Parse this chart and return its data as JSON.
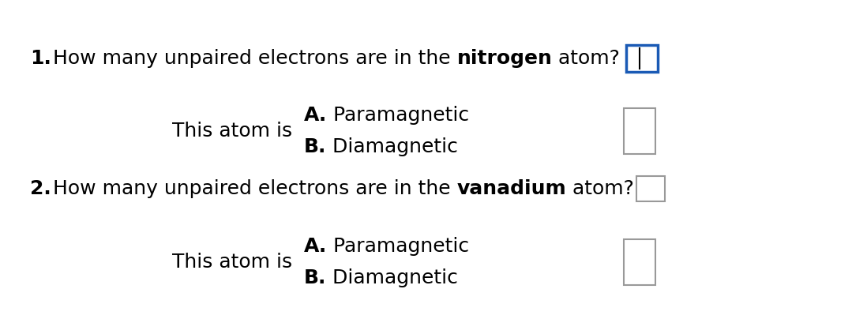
{
  "background_color": "#ffffff",
  "q1_number": "1.",
  "q1_prefix": "How many unpaired electrons are in the ",
  "q1_bold": "nitrogen",
  "q1_suffix": " atom?",
  "q2_number": "2.",
  "q2_prefix": "How many unpaired electrons are in the ",
  "q2_bold": "vanadium",
  "q2_suffix": " atom?",
  "this_atom_is": "This atom is",
  "choice_a_bold": "A.",
  "choice_a_text": " Paramagnetic",
  "choice_b_bold": "B.",
  "choice_b_text": " Diamagnetic",
  "font_size_question": 18,
  "font_size_choices": 18,
  "font_size_this": 18,
  "box1_color": "#1a5ab5",
  "box_gray_color": "#999999"
}
